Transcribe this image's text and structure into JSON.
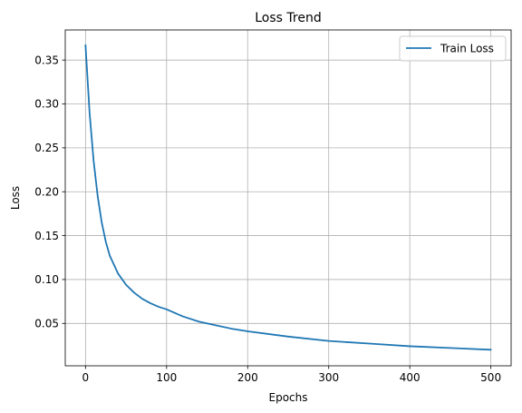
{
  "chart_data": {
    "type": "line",
    "title": "Loss Trend",
    "xlabel": "Epochs",
    "ylabel": "Loss",
    "xlim": [
      -25,
      525
    ],
    "ylim": [
      0.0017,
      0.3843
    ],
    "grid": true,
    "legend_position": "top-right",
    "x_ticks": [
      "0",
      "100",
      "200",
      "300",
      "400",
      "500"
    ],
    "y_ticks": [
      "0.05",
      "0.10",
      "0.15",
      "0.20",
      "0.25",
      "0.30",
      "0.35"
    ],
    "series": [
      {
        "name": "Train Loss",
        "color": "#1f77b4",
        "x": [
          0,
          5,
          10,
          15,
          20,
          25,
          30,
          40,
          50,
          60,
          70,
          80,
          90,
          100,
          120,
          140,
          160,
          180,
          200,
          250,
          300,
          350,
          400,
          450,
          500
        ],
        "y": [
          0.367,
          0.29,
          0.235,
          0.195,
          0.165,
          0.143,
          0.127,
          0.107,
          0.094,
          0.085,
          0.078,
          0.073,
          0.069,
          0.066,
          0.058,
          0.052,
          0.048,
          0.044,
          0.041,
          0.035,
          0.03,
          0.027,
          0.024,
          0.022,
          0.02
        ]
      }
    ]
  }
}
